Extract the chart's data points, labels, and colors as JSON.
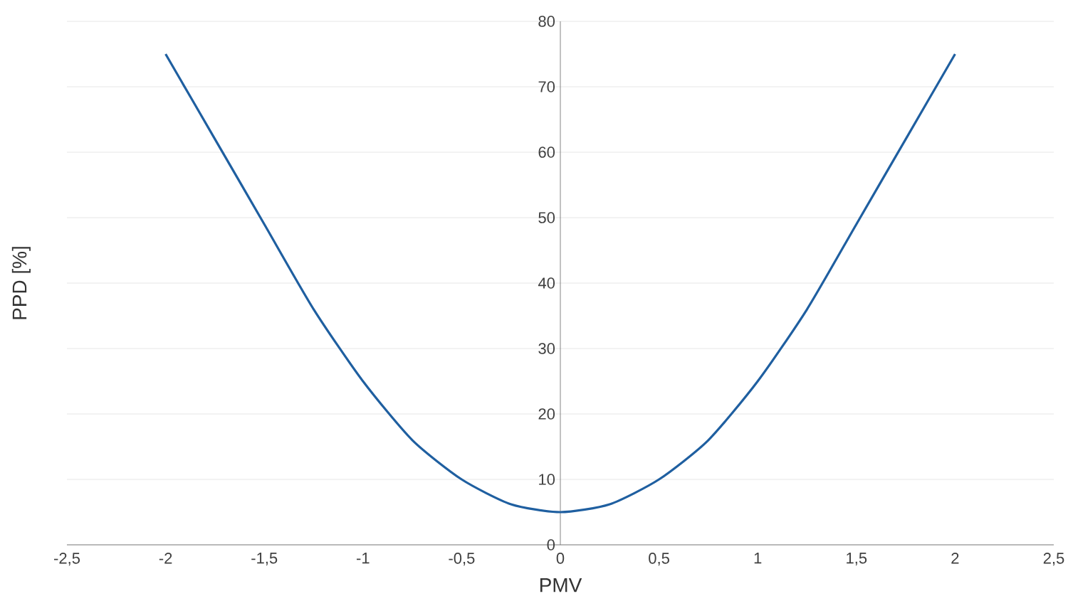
{
  "chart_data": {
    "type": "line",
    "xlabel": "PMV",
    "ylabel": "PPD [%]",
    "x": [
      -2,
      -1.75,
      -1.5,
      -1.25,
      -1,
      -0.75,
      -0.5,
      -0.25,
      0,
      0.25,
      0.5,
      0.75,
      1,
      1.25,
      1.5,
      1.75,
      2
    ],
    "values": [
      75,
      62,
      49,
      36,
      25,
      16,
      10,
      6.2,
      5,
      6.2,
      10,
      16,
      25,
      36,
      49,
      62,
      75
    ],
    "color": "#1f5fa0",
    "xlim": [
      -2.5,
      2.5
    ],
    "ylim": [
      0,
      80
    ],
    "xticks": [
      {
        "value": -2.5,
        "label": "-2,5"
      },
      -2,
      {
        "value": -1.5,
        "label": "-1,5"
      },
      -1,
      {
        "value": -0.5,
        "label": "-0,5"
      },
      0,
      {
        "value": 0.5,
        "label": "0,5"
      },
      1,
      {
        "value": 1.5,
        "label": "1,5"
      },
      2,
      {
        "value": 2.5,
        "label": "2,5"
      }
    ],
    "yticks": [
      0,
      10,
      20,
      30,
      40,
      50,
      60,
      70,
      80
    ],
    "grid": "y"
  }
}
